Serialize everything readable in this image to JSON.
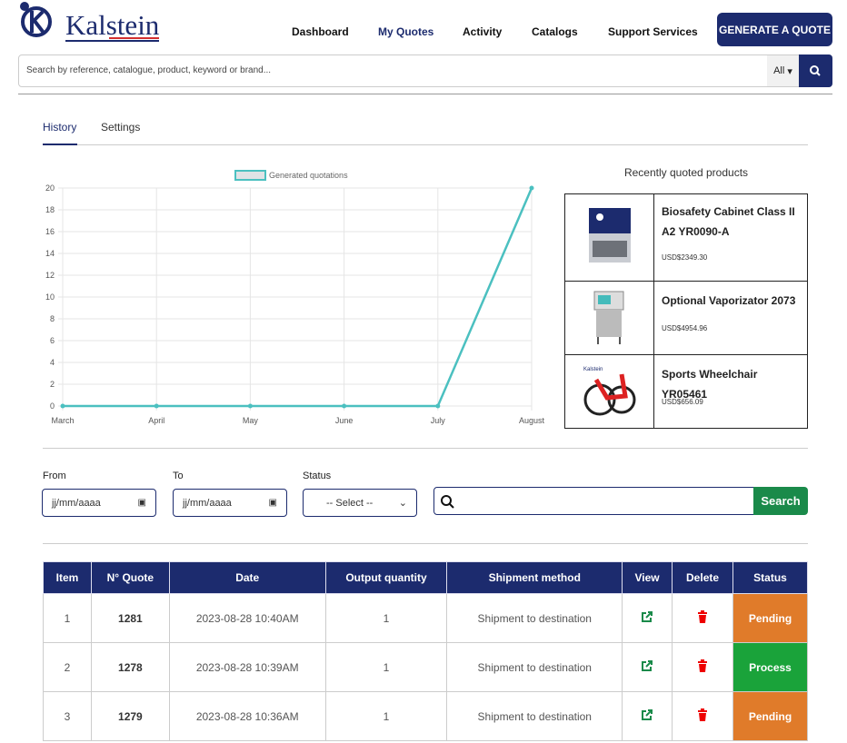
{
  "header": {
    "logo": "Kalstein",
    "nav": [
      "Dashboard",
      "My Quotes",
      "Activity",
      "Catalogs",
      "Support Services"
    ],
    "button": "GENERATE A QUOTE"
  },
  "search": {
    "placeholder": "Search by reference, catalogue, product, keyword or brand...",
    "scope": "All"
  },
  "tabs": [
    "History",
    "Settings"
  ],
  "chart_data": {
    "type": "line",
    "categories": [
      "March",
      "April",
      "May",
      "June",
      "July",
      "August"
    ],
    "series": [
      {
        "name": "Generated quotations",
        "color": "#4bc0c0",
        "values": [
          0,
          0,
          0,
          0,
          0,
          20
        ]
      }
    ],
    "ylim": [
      0,
      20
    ],
    "yticks": [
      0,
      2,
      4,
      6,
      8,
      10,
      12,
      14,
      16,
      18,
      20
    ],
    "grid": true,
    "legend": "top"
  },
  "recent": {
    "title": "Recently quoted products",
    "products": [
      {
        "name": "Biosafety Cabinet Class II A2 YR0090-A",
        "price": "USD$2349.30"
      },
      {
        "name": "Optional Vaporizator 2073",
        "price": "USD$4954.96"
      },
      {
        "name": "Sports Wheelchair YR05461",
        "price": "USD$656.09"
      }
    ]
  },
  "filters": {
    "from": "From",
    "to": "To",
    "status": "Status",
    "date_placeholder": "jj/mm/aaaa",
    "select": "-- Select --",
    "button": "Search"
  },
  "table": {
    "headers": [
      "Item",
      "N° Quote",
      "Date",
      "Output quantity",
      "Shipment method",
      "View",
      "Delete",
      "Status"
    ],
    "rows": [
      {
        "item": 1,
        "quote": 1281,
        "date": "2023-08-28 10:40AM",
        "quantity": 1,
        "shipment": "Shipment to destination",
        "status": "Pending",
        "status_color": "#e07b2a"
      },
      {
        "item": 2,
        "quote": 1278,
        "date": "2023-08-28 10:39AM",
        "quantity": 1,
        "shipment": "Shipment to destination",
        "status": "Process",
        "status_color": "#1aa33a"
      },
      {
        "item": 3,
        "quote": 1279,
        "date": "2023-08-28 10:36AM",
        "quantity": 1,
        "shipment": "Shipment to destination",
        "status": "Pending",
        "status_color": "#e07b2a"
      }
    ]
  }
}
